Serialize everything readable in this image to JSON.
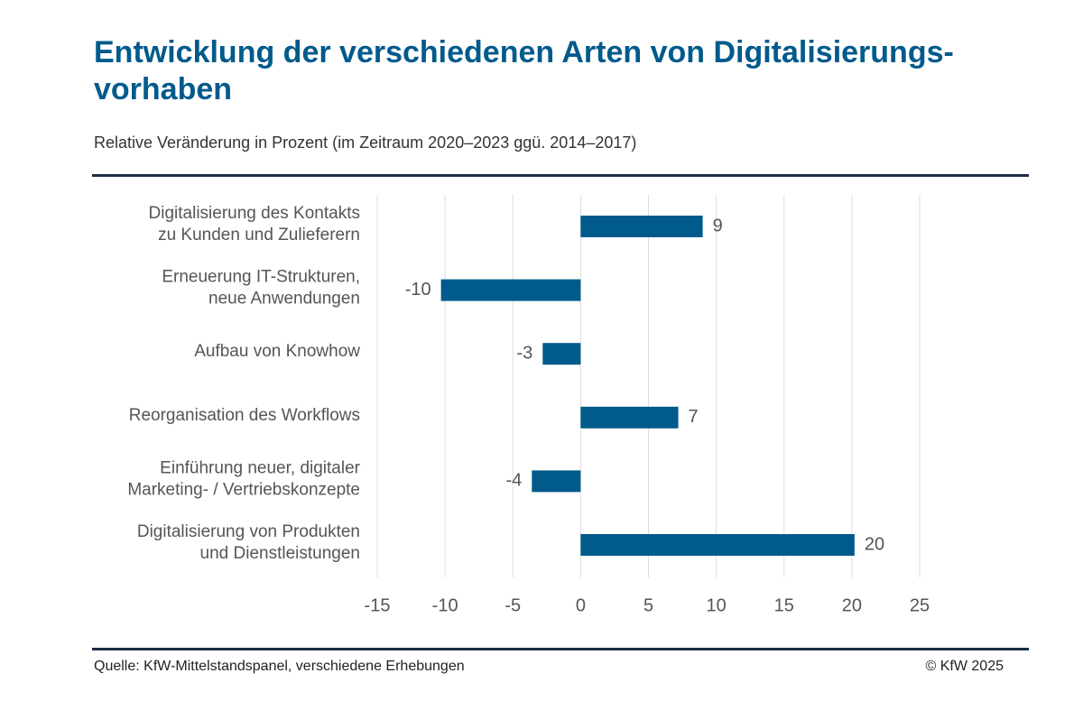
{
  "header": {
    "title": "Entwicklung der verschiedenen Arten von Digitalisierungs-vorhaben",
    "subtitle": "Relative Veränderung in Prozent (im Zeitraum 2020–2023 ggü. 2014–2017)"
  },
  "footer": {
    "source": "Quelle: KfW-Mittelstandspanel, verschiedene Erhebungen",
    "copyright": "© KfW 2025"
  },
  "colors": {
    "bar": "#005a8c",
    "title": "#005a8c",
    "gridline": "#dddddd",
    "label": "#555555"
  },
  "chart_data": {
    "type": "bar",
    "orientation": "horizontal",
    "title": "Entwicklung der verschiedenen Arten von Digitalisierungs-vorhaben",
    "subtitle": "Relative Veränderung in Prozent (im Zeitraum 2020–2023 ggü. 2014–2017)",
    "categories": [
      [
        "Digitalisierung des Kontakts",
        "zu Kunden und Zulieferern"
      ],
      [
        "Erneuerung IT-Strukturen,",
        "neue Anwendungen"
      ],
      [
        "Aufbau von Knowhow"
      ],
      [
        "Reorganisation des Workflows"
      ],
      [
        "Einführung neuer, digitaler",
        "Marketing- / Vertriebskonzepte"
      ],
      [
        "Digitalisierung von Produkten",
        "und Dienstleistungen"
      ]
    ],
    "values": [
      9,
      -10.3,
      -2.8,
      7.2,
      -3.6,
      20.2
    ],
    "value_labels": [
      "9",
      "-10",
      "-3",
      "7",
      "-4",
      "20"
    ],
    "xlim": [
      -15,
      25
    ],
    "xticks": [
      -15,
      -10,
      -5,
      0,
      5,
      10,
      15,
      20,
      25
    ],
    "tick_labels": [
      "-15",
      "-10",
      "-5",
      "0",
      "5",
      "10",
      "15",
      "20",
      "25"
    ],
    "grid": "vertical",
    "xlabel": "",
    "ylabel": ""
  }
}
